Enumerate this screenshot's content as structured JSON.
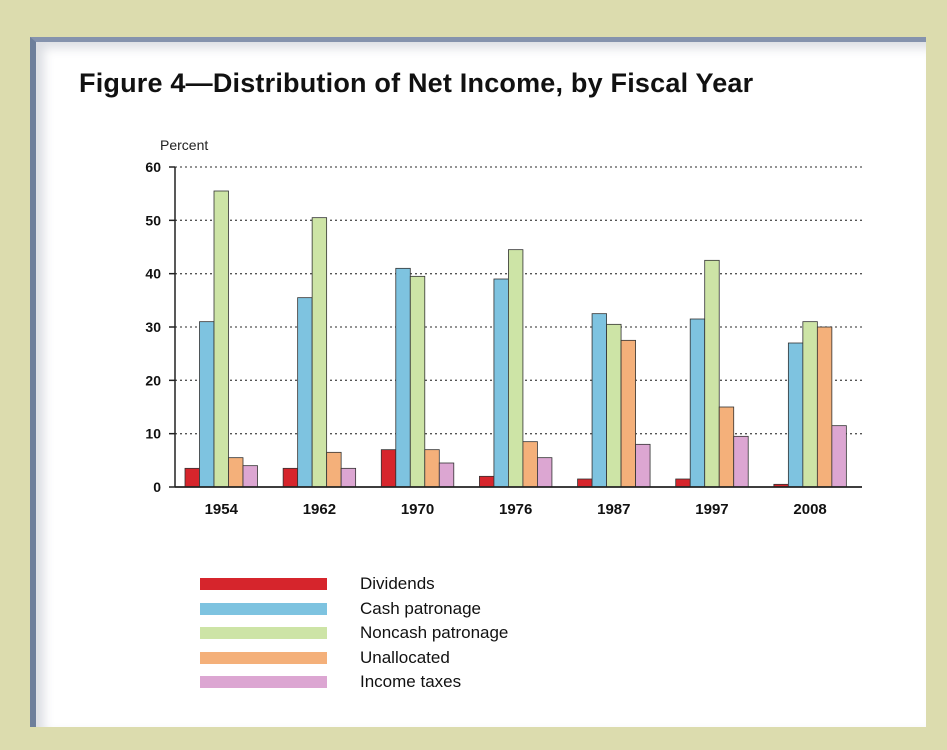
{
  "chart_data": {
    "type": "bar",
    "title": "Figure 4—Distribution of Net Income, by Fiscal Year",
    "ylabel": "Percent",
    "xlabel": "",
    "ylim": [
      0,
      60
    ],
    "yticks": [
      0,
      10,
      20,
      30,
      40,
      50,
      60
    ],
    "grid": true,
    "legend_position": "bottom",
    "categories": [
      "1954",
      "1962",
      "1970",
      "1976",
      "1987",
      "1997",
      "2008"
    ],
    "series": [
      {
        "name": "Dividends",
        "color": "#d6252c",
        "values": [
          3.5,
          3.5,
          7,
          2,
          1.5,
          1.5,
          0.5
        ]
      },
      {
        "name": "Cash patronage",
        "color": "#7ec3e0",
        "values": [
          31,
          35.5,
          41,
          39,
          32.5,
          31.5,
          27
        ]
      },
      {
        "name": "Noncash patronage",
        "color": "#cde4a6",
        "values": [
          55.5,
          50.5,
          39.5,
          44.5,
          30.5,
          42.5,
          31
        ]
      },
      {
        "name": "Unallocated",
        "color": "#f4b07a",
        "values": [
          5.5,
          6.5,
          7,
          8.5,
          27.5,
          15,
          30
        ]
      },
      {
        "name": "Income taxes",
        "color": "#dca6d2",
        "values": [
          4,
          3.5,
          4.5,
          5.5,
          8,
          9.5,
          11.5
        ]
      }
    ]
  }
}
